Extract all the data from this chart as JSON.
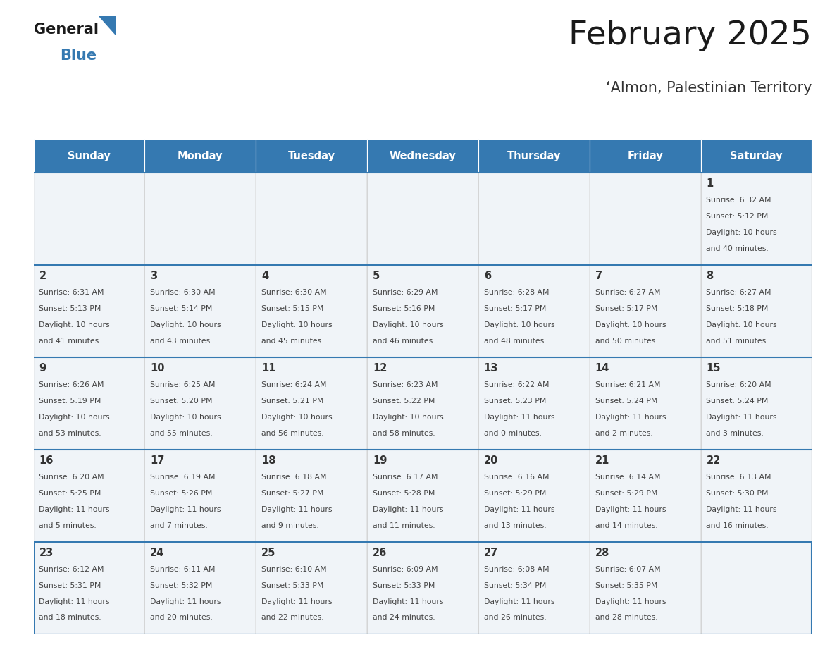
{
  "title": "February 2025",
  "subtitle": "‘Almon, Palestinian Territory",
  "header_color": "#3579b1",
  "header_text_color": "#ffffff",
  "cell_bg_color": "#f0f4f8",
  "border_color": "#3579b1",
  "cell_border_color": "#cccccc",
  "text_color": "#444444",
  "day_number_color": "#333333",
  "days_of_week": [
    "Sunday",
    "Monday",
    "Tuesday",
    "Wednesday",
    "Thursday",
    "Friday",
    "Saturday"
  ],
  "weeks": [
    [
      {
        "day": "",
        "info": ""
      },
      {
        "day": "",
        "info": ""
      },
      {
        "day": "",
        "info": ""
      },
      {
        "day": "",
        "info": ""
      },
      {
        "day": "",
        "info": ""
      },
      {
        "day": "",
        "info": ""
      },
      {
        "day": "1",
        "info": "Sunrise: 6:32 AM\nSunset: 5:12 PM\nDaylight: 10 hours\nand 40 minutes."
      }
    ],
    [
      {
        "day": "2",
        "info": "Sunrise: 6:31 AM\nSunset: 5:13 PM\nDaylight: 10 hours\nand 41 minutes."
      },
      {
        "day": "3",
        "info": "Sunrise: 6:30 AM\nSunset: 5:14 PM\nDaylight: 10 hours\nand 43 minutes."
      },
      {
        "day": "4",
        "info": "Sunrise: 6:30 AM\nSunset: 5:15 PM\nDaylight: 10 hours\nand 45 minutes."
      },
      {
        "day": "5",
        "info": "Sunrise: 6:29 AM\nSunset: 5:16 PM\nDaylight: 10 hours\nand 46 minutes."
      },
      {
        "day": "6",
        "info": "Sunrise: 6:28 AM\nSunset: 5:17 PM\nDaylight: 10 hours\nand 48 minutes."
      },
      {
        "day": "7",
        "info": "Sunrise: 6:27 AM\nSunset: 5:17 PM\nDaylight: 10 hours\nand 50 minutes."
      },
      {
        "day": "8",
        "info": "Sunrise: 6:27 AM\nSunset: 5:18 PM\nDaylight: 10 hours\nand 51 minutes."
      }
    ],
    [
      {
        "day": "9",
        "info": "Sunrise: 6:26 AM\nSunset: 5:19 PM\nDaylight: 10 hours\nand 53 minutes."
      },
      {
        "day": "10",
        "info": "Sunrise: 6:25 AM\nSunset: 5:20 PM\nDaylight: 10 hours\nand 55 minutes."
      },
      {
        "day": "11",
        "info": "Sunrise: 6:24 AM\nSunset: 5:21 PM\nDaylight: 10 hours\nand 56 minutes."
      },
      {
        "day": "12",
        "info": "Sunrise: 6:23 AM\nSunset: 5:22 PM\nDaylight: 10 hours\nand 58 minutes."
      },
      {
        "day": "13",
        "info": "Sunrise: 6:22 AM\nSunset: 5:23 PM\nDaylight: 11 hours\nand 0 minutes."
      },
      {
        "day": "14",
        "info": "Sunrise: 6:21 AM\nSunset: 5:24 PM\nDaylight: 11 hours\nand 2 minutes."
      },
      {
        "day": "15",
        "info": "Sunrise: 6:20 AM\nSunset: 5:24 PM\nDaylight: 11 hours\nand 3 minutes."
      }
    ],
    [
      {
        "day": "16",
        "info": "Sunrise: 6:20 AM\nSunset: 5:25 PM\nDaylight: 11 hours\nand 5 minutes."
      },
      {
        "day": "17",
        "info": "Sunrise: 6:19 AM\nSunset: 5:26 PM\nDaylight: 11 hours\nand 7 minutes."
      },
      {
        "day": "18",
        "info": "Sunrise: 6:18 AM\nSunset: 5:27 PM\nDaylight: 11 hours\nand 9 minutes."
      },
      {
        "day": "19",
        "info": "Sunrise: 6:17 AM\nSunset: 5:28 PM\nDaylight: 11 hours\nand 11 minutes."
      },
      {
        "day": "20",
        "info": "Sunrise: 6:16 AM\nSunset: 5:29 PM\nDaylight: 11 hours\nand 13 minutes."
      },
      {
        "day": "21",
        "info": "Sunrise: 6:14 AM\nSunset: 5:29 PM\nDaylight: 11 hours\nand 14 minutes."
      },
      {
        "day": "22",
        "info": "Sunrise: 6:13 AM\nSunset: 5:30 PM\nDaylight: 11 hours\nand 16 minutes."
      }
    ],
    [
      {
        "day": "23",
        "info": "Sunrise: 6:12 AM\nSunset: 5:31 PM\nDaylight: 11 hours\nand 18 minutes."
      },
      {
        "day": "24",
        "info": "Sunrise: 6:11 AM\nSunset: 5:32 PM\nDaylight: 11 hours\nand 20 minutes."
      },
      {
        "day": "25",
        "info": "Sunrise: 6:10 AM\nSunset: 5:33 PM\nDaylight: 11 hours\nand 22 minutes."
      },
      {
        "day": "26",
        "info": "Sunrise: 6:09 AM\nSunset: 5:33 PM\nDaylight: 11 hours\nand 24 minutes."
      },
      {
        "day": "27",
        "info": "Sunrise: 6:08 AM\nSunset: 5:34 PM\nDaylight: 11 hours\nand 26 minutes."
      },
      {
        "day": "28",
        "info": "Sunrise: 6:07 AM\nSunset: 5:35 PM\nDaylight: 11 hours\nand 28 minutes."
      },
      {
        "day": "",
        "info": ""
      }
    ]
  ],
  "logo_general_color": "#222222",
  "logo_blue_color": "#3579b1",
  "logo_triangle_color": "#3579b1"
}
